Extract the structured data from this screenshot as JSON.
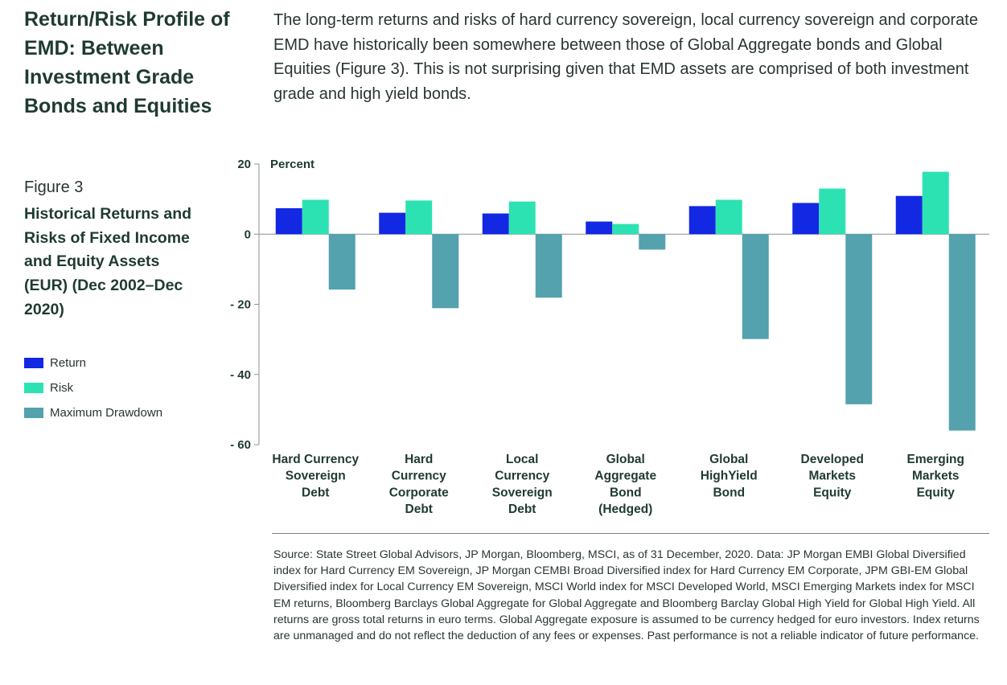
{
  "heading": "Return/Risk Profile of EMD: Between Investment Grade Bonds and Equities",
  "intro": "The long-term returns and risks of hard currency sovereign, local currency sovereign and corporate EMD have historically been somewhere between those of Global Aggregate bonds and Global Equities (Figure 3). This is not surprising given that EMD assets are comprised of both investment grade and high yield bonds.",
  "figure": {
    "label": "Figure 3",
    "title": "Historical Returns and Risks of Fixed Income and Equity Assets (EUR) (Dec 2002–Dec 2020)"
  },
  "legend": [
    {
      "label": "Return",
      "color": "#1228e3"
    },
    {
      "label": "Risk",
      "color": "#2de2b2"
    },
    {
      "label": "Maximum Drawdown",
      "color": "#53a2ad"
    }
  ],
  "chart_data": {
    "type": "bar",
    "ylabel": "Percent",
    "ylim": [
      -60,
      20
    ],
    "yticks": [
      20,
      0,
      -20,
      -40,
      -60
    ],
    "ytick_labels": [
      "20",
      "0",
      "- 20",
      "- 40",
      "- 60"
    ],
    "categories": [
      [
        "Hard Currency",
        "Sovereign",
        "Debt"
      ],
      [
        "Hard",
        "Currency",
        "Corporate",
        "Debt"
      ],
      [
        "Local",
        "Currency",
        "Sovereign",
        "Debt"
      ],
      [
        "Global",
        "Aggregate",
        "Bond",
        "(Hedged)"
      ],
      [
        "Global",
        "HighYield",
        "Bond"
      ],
      [
        "Developed",
        "Markets",
        "Equity"
      ],
      [
        "Emerging",
        "Markets",
        "Equity"
      ]
    ],
    "series": [
      {
        "name": "Return",
        "values": [
          7.4,
          6.1,
          5.9,
          3.6,
          8.0,
          8.9,
          10.9
        ]
      },
      {
        "name": "Risk",
        "values": [
          9.8,
          9.6,
          9.3,
          2.9,
          9.8,
          13.0,
          17.8
        ]
      },
      {
        "name": "Maximum Drawdown",
        "values": [
          -15.8,
          -21.1,
          -18.1,
          -4.4,
          -29.9,
          -48.5,
          -56.0
        ]
      }
    ]
  },
  "source": "Source: State Street Global Advisors, JP Morgan, Bloomberg, MSCI, as of 31 December, 2020. Data: JP Morgan EMBI Global Diversified index for Hard Currency EM Sovereign, JP Morgan CEMBI Broad Diversified index for Hard Currency EM Corporate, JPM GBI-EM Global Diversified index for Local Currency EM Sovereign, MSCI World index for MSCI Developed World, MSCI Emerging Markets index for MSCI EM returns, Bloomberg Barclays Global Aggregate for Global Aggregate and Bloomberg Barclay Global High Yield for Global High Yield. All returns are gross total returns in euro terms. Global Aggregate exposure is assumed to be currency hedged for euro investors. Index returns are unmanaged and do not reflect the deduction of any fees or expenses. Past performance is not a reliable indicator of future performance."
}
